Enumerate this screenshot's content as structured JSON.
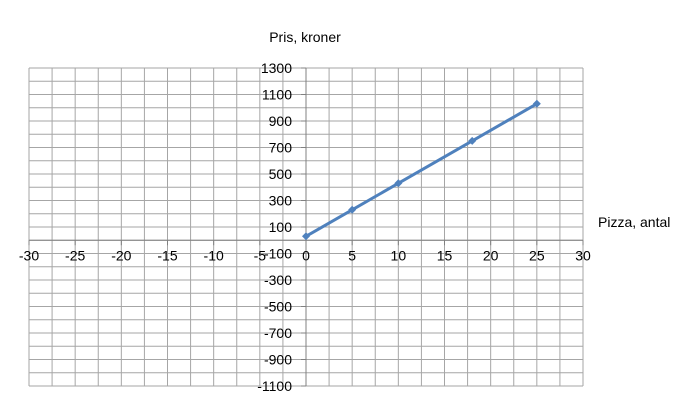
{
  "chart_data": {
    "type": "line",
    "title": "",
    "xlabel": "Pizza, antal",
    "ylabel": "Pris, kroner",
    "xlim": [
      -30,
      30
    ],
    "ylim": [
      -1100,
      1300
    ],
    "x_ticks": [
      -30,
      -25,
      -20,
      -15,
      -10,
      -5,
      0,
      5,
      10,
      15,
      20,
      25,
      30
    ],
    "y_ticks": [
      -1100,
      -900,
      -700,
      -500,
      -300,
      -100,
      100,
      300,
      500,
      700,
      900,
      1100,
      1300
    ],
    "x_tick_labels": [
      "-30",
      "-25",
      "-20",
      "-15",
      "-10",
      "-5",
      "0",
      "5",
      "10",
      "15",
      "20",
      "25",
      "30"
    ],
    "y_tick_labels": [
      "-1100",
      "-900",
      "-700",
      "-500",
      "-300",
      "-100",
      "100",
      "300",
      "500",
      "700",
      "900",
      "1100",
      "1300"
    ],
    "grid": true,
    "legend": "none",
    "series": [
      {
        "x": [
          0,
          5,
          10,
          18,
          25
        ],
        "values": [
          30,
          230,
          430,
          750,
          1030
        ],
        "color": "#4f81bd"
      }
    ]
  }
}
